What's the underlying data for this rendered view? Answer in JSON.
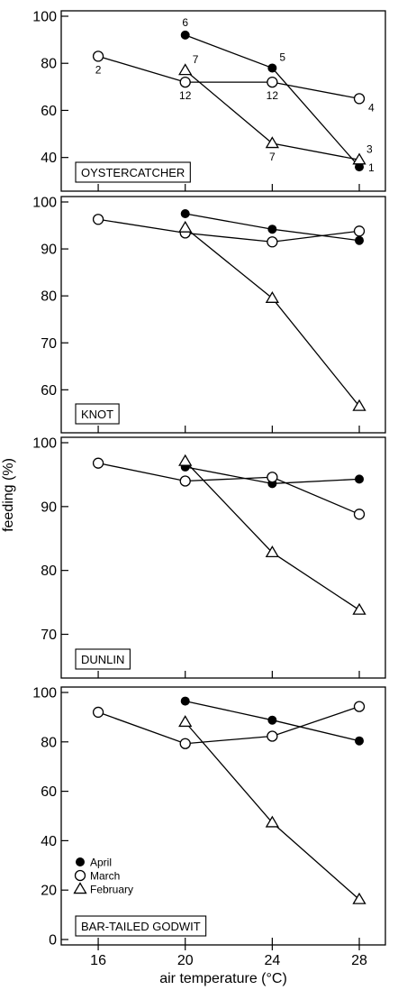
{
  "chart_data": {
    "type": "line",
    "xlabel": "air temperature (°C)",
    "ylabel": "feeding (%)",
    "x_ticks": [
      16,
      20,
      24,
      28
    ],
    "xlim": [
      14.3,
      29.2
    ],
    "legend": {
      "placement": "bottom-left of bottom panel",
      "entries": [
        {
          "name": "April",
          "marker": "filled-circle"
        },
        {
          "name": "March",
          "marker": "open-circle"
        },
        {
          "name": "February",
          "marker": "open-triangle"
        }
      ]
    },
    "panels": [
      {
        "label": "OYSTERCATCHER",
        "ylim": [
          28,
          100
        ],
        "yticks": [
          40,
          60,
          80,
          100
        ],
        "series": [
          {
            "name": "April",
            "marker": "filled-circle",
            "points": [
              {
                "x": 20,
                "y": 92
              },
              {
                "x": 24,
                "y": 78
              },
              {
                "x": 28,
                "y": 36
              }
            ]
          },
          {
            "name": "March",
            "marker": "open-circle",
            "points": [
              {
                "x": 16,
                "y": 83
              },
              {
                "x": 20,
                "y": 72
              },
              {
                "x": 24,
                "y": 72
              },
              {
                "x": 28,
                "y": 65
              }
            ]
          },
          {
            "name": "February",
            "marker": "open-triangle",
            "points": [
              {
                "x": 20,
                "y": 77
              },
              {
                "x": 24,
                "y": 46
              },
              {
                "x": 28,
                "y": 39
              }
            ]
          }
        ],
        "annotations": [
          {
            "text": "6",
            "x": 20,
            "y": 92,
            "pos": "above"
          },
          {
            "text": "5",
            "x": 24,
            "y": 78,
            "pos": "above-right"
          },
          {
            "text": "1",
            "x": 28,
            "y": 36,
            "pos": "right"
          },
          {
            "text": "2",
            "x": 16,
            "y": 83,
            "pos": "below"
          },
          {
            "text": "12",
            "x": 20,
            "y": 72,
            "pos": "below"
          },
          {
            "text": "12",
            "x": 24,
            "y": 72,
            "pos": "below"
          },
          {
            "text": "4",
            "x": 28,
            "y": 65,
            "pos": "below-right"
          },
          {
            "text": "7",
            "x": 20,
            "y": 77,
            "pos": "above-right"
          },
          {
            "text": "7",
            "x": 24,
            "y": 46,
            "pos": "below"
          },
          {
            "text": "3",
            "x": 28,
            "y": 39,
            "pos": "above-right"
          }
        ]
      },
      {
        "label": "KNOT",
        "ylim": [
          52,
          100
        ],
        "yticks": [
          60,
          70,
          80,
          90,
          100
        ],
        "series": [
          {
            "name": "April",
            "marker": "filled-circle",
            "points": [
              {
                "x": 20,
                "y": 97.5
              },
              {
                "x": 24,
                "y": 94.2
              },
              {
                "x": 28,
                "y": 91.8
              }
            ]
          },
          {
            "name": "March",
            "marker": "open-circle",
            "points": [
              {
                "x": 16,
                "y": 96.3
              },
              {
                "x": 20,
                "y": 93.4
              },
              {
                "x": 24,
                "y": 91.5
              },
              {
                "x": 28,
                "y": 93.8
              }
            ]
          },
          {
            "name": "February",
            "marker": "open-triangle",
            "points": [
              {
                "x": 20,
                "y": 94.5
              },
              {
                "x": 24,
                "y": 79.5
              },
              {
                "x": 28,
                "y": 56.5
              }
            ]
          }
        ]
      },
      {
        "label": "DUNLIN",
        "ylim": [
          64,
          100
        ],
        "yticks": [
          70,
          80,
          90,
          100
        ],
        "series": [
          {
            "name": "April",
            "marker": "filled-circle",
            "points": [
              {
                "x": 20,
                "y": 96.2
              },
              {
                "x": 24,
                "y": 93.6
              },
              {
                "x": 28,
                "y": 94.3
              }
            ]
          },
          {
            "name": "March",
            "marker": "open-circle",
            "points": [
              {
                "x": 16,
                "y": 96.8
              },
              {
                "x": 20,
                "y": 94.0
              },
              {
                "x": 24,
                "y": 94.6
              },
              {
                "x": 28,
                "y": 88.8
              }
            ]
          },
          {
            "name": "February",
            "marker": "open-triangle",
            "points": [
              {
                "x": 20,
                "y": 97.1
              },
              {
                "x": 24,
                "y": 82.8
              },
              {
                "x": 28,
                "y": 73.8
              }
            ]
          }
        ]
      },
      {
        "label": "BAR-TAILED GODWIT",
        "ylim": [
          0,
          100
        ],
        "yticks": [
          0,
          20,
          40,
          60,
          80,
          100
        ],
        "series": [
          {
            "name": "April",
            "marker": "filled-circle",
            "points": [
              {
                "x": 20,
                "y": 96.5
              },
              {
                "x": 24,
                "y": 88.8
              },
              {
                "x": 28,
                "y": 80.4
              }
            ]
          },
          {
            "name": "March",
            "marker": "open-circle",
            "points": [
              {
                "x": 16,
                "y": 92.0
              },
              {
                "x": 20,
                "y": 79.3
              },
              {
                "x": 24,
                "y": 82.3
              },
              {
                "x": 28,
                "y": 94.3
              }
            ]
          },
          {
            "name": "February",
            "marker": "open-triangle",
            "points": [
              {
                "x": 20,
                "y": 88.0
              },
              {
                "x": 24,
                "y": 47.3
              },
              {
                "x": 28,
                "y": 16.2
              }
            ]
          }
        ]
      }
    ]
  }
}
